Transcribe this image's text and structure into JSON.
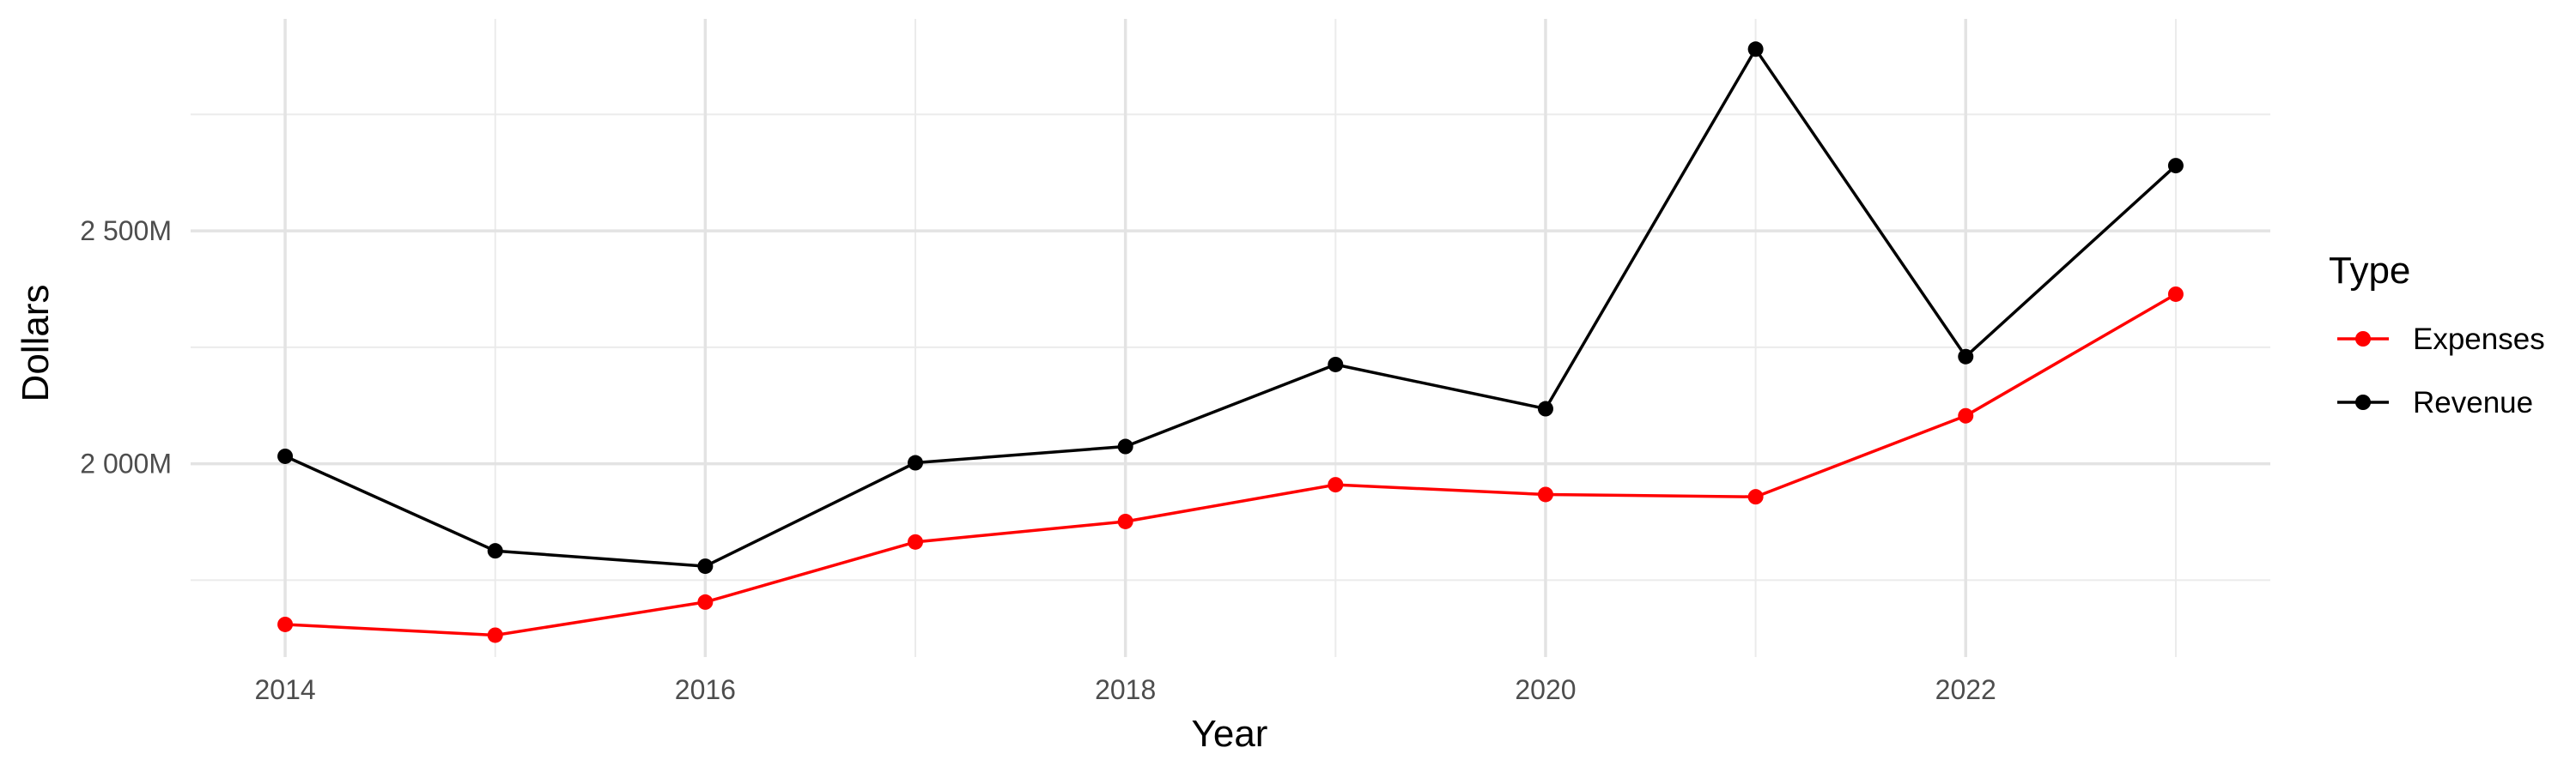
{
  "chart_data": {
    "type": "line",
    "title": "",
    "xlabel": "Year",
    "ylabel": "Dollars",
    "x": [
      2014,
      2015,
      2016,
      2017,
      2018,
      2019,
      2020,
      2021,
      2022,
      2023
    ],
    "xticks": [
      2014,
      2016,
      2018,
      2020,
      2022
    ],
    "xtick_labels": [
      "2014",
      "2016",
      "2018",
      "2020",
      "2022"
    ],
    "xlim": [
      2013.55,
      2023.45
    ],
    "ylim": [
      1585,
      2955
    ],
    "yticks": [
      2000,
      2500
    ],
    "ytick_labels": [
      "2 000M",
      "2 500M"
    ],
    "y_minor_gridlines": [
      1750,
      2250,
      2750
    ],
    "grid": true,
    "legend": {
      "title": "Type",
      "position": "right"
    },
    "series": [
      {
        "name": "Expenses",
        "color": "#ff0000",
        "values": [
          1655,
          1632,
          1703,
          1832,
          1876,
          1955,
          1934,
          1929,
          2103,
          2364
        ]
      },
      {
        "name": "Revenue",
        "color": "#000000",
        "values": [
          2016,
          1813,
          1780,
          2002,
          2037,
          2213,
          2118,
          2890,
          2230,
          2640
        ]
      }
    ]
  }
}
